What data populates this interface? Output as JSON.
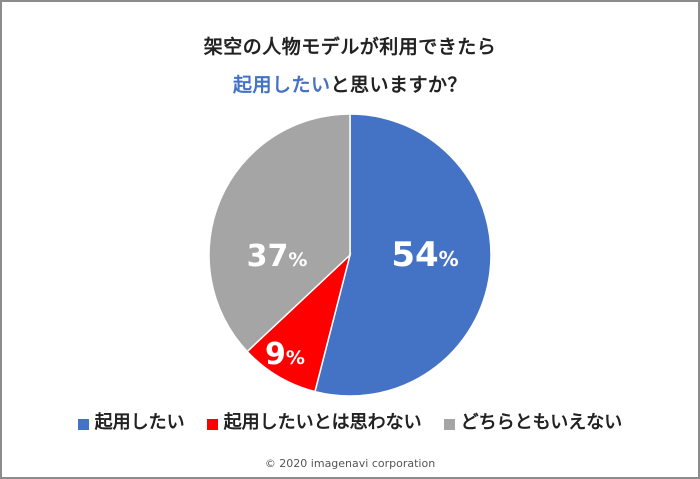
{
  "title": {
    "line1": "架空の人物モデルが利用できたら",
    "line2_accent": "起用したい",
    "line2_rest": "と思いますか？"
  },
  "colors": {
    "blue": "#4472c4",
    "red": "#ff0000",
    "gray": "#a5a5a5",
    "accent": "#4472c4"
  },
  "legend": [
    {
      "label": "起用したい",
      "color": "#4472c4"
    },
    {
      "label": "起用したいとは思わない",
      "color": "#ff0000"
    },
    {
      "label": "どちらともいえない",
      "color": "#a5a5a5"
    }
  ],
  "labels": {
    "slice0_num": "54",
    "slice0_pct": "%",
    "slice1_num": "9",
    "slice1_pct": "%",
    "slice2_num": "37",
    "slice2_pct": "%"
  },
  "copyright": "© 2020 imagenavi corporation",
  "chart_data": {
    "type": "pie",
    "title": "架空の人物モデルが利用できたら起用したいと思いますか？",
    "categories": [
      "起用したい",
      "起用したいとは思わない",
      "どちらともいえない"
    ],
    "values": [
      54,
      9,
      37
    ],
    "unit": "%",
    "colors": [
      "#4472c4",
      "#ff0000",
      "#a5a5a5"
    ],
    "start_angle_deg": 0,
    "direction": "clockwise",
    "legend_position": "bottom",
    "data_labels": [
      "54%",
      "9%",
      "37%"
    ]
  }
}
